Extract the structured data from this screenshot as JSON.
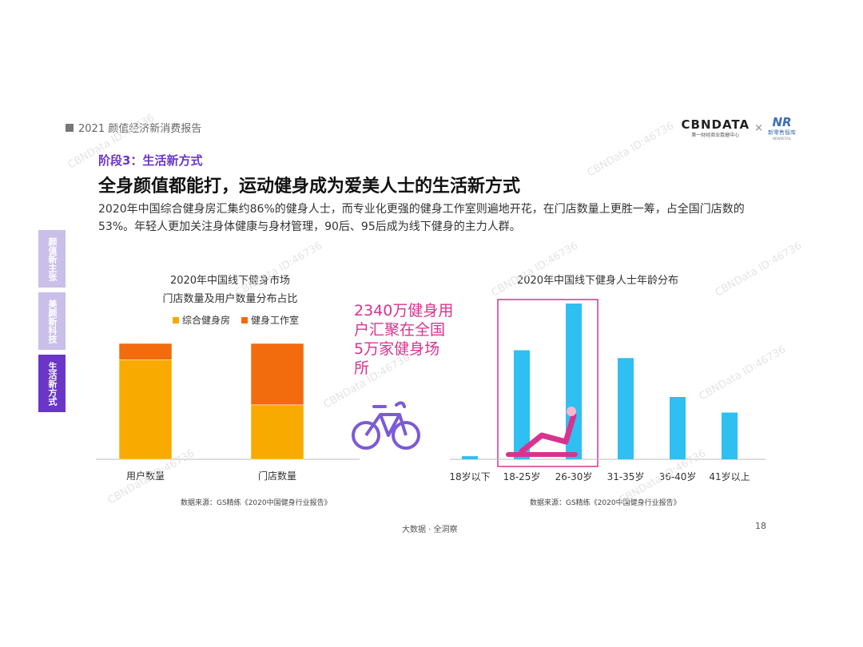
{
  "report_tag": "2021 颜值经济新消费报告",
  "logos": {
    "cbn_name": "CBNDATA",
    "cbn_sub": "第一财经商业数据中心",
    "times": "×",
    "xls_mark": "NR",
    "xls_name": "新零售智库",
    "xls_sub": "NEWRETAIL"
  },
  "stage_title": "阶段3：生活新方式",
  "headline": "全身颜值都能打，运动健身成为爱美人士的生活新方式",
  "description": "2020年中国综合健身房汇集约86%的健身人士，而专业化更强的健身工作室则遍地开花，在门店数量上更胜一筹，占全国门店数的53%。年轻人更加关注身体健康与身材管理，90后、95后成为线下健身的主力人群。",
  "side_tabs": [
    {
      "label": "颜值新主张",
      "active": false
    },
    {
      "label": "美颜新科技",
      "active": false
    },
    {
      "label": "生活新方式",
      "active": true
    }
  ],
  "callout": "2340万健身用户汇聚在全国5万家健身场所",
  "footer": "大数据 · 全洞察",
  "page_number": "18",
  "watermark": "CBNData ID:46736",
  "colors": {
    "gym": "#f8aa00",
    "studio": "#f26b0c",
    "age_bar": "#2fbff0",
    "accent": "#6a36c8",
    "callout": "#d9338f"
  },
  "chart_data": [
    {
      "type": "bar",
      "stacked": true,
      "title": "2020年中国线下健身市场",
      "subtitle": "门店数量及用户数量分布占比",
      "categories": [
        "用户数量",
        "门店数量"
      ],
      "series": [
        {
          "name": "综合健身房",
          "values": [
            86,
            47
          ]
        },
        {
          "name": "健身工作室",
          "values": [
            14,
            53
          ]
        }
      ],
      "ylim": [
        0,
        100
      ],
      "legend": "top",
      "source": "数据来源：GS精练《2020中国健身行业报告》"
    },
    {
      "type": "bar",
      "title": "2020年中国线下健身人士年龄分布",
      "categories": [
        "18岁以下",
        "18-25岁",
        "26-30岁",
        "31-35岁",
        "36-40岁",
        "41岁以上"
      ],
      "values": [
        2,
        70,
        100,
        65,
        40,
        30
      ],
      "ylim": [
        0,
        100
      ],
      "highlight": [
        "18-25岁",
        "26-30岁"
      ],
      "source": "数据来源：GS精练《2020中国健身行业报告》"
    }
  ]
}
